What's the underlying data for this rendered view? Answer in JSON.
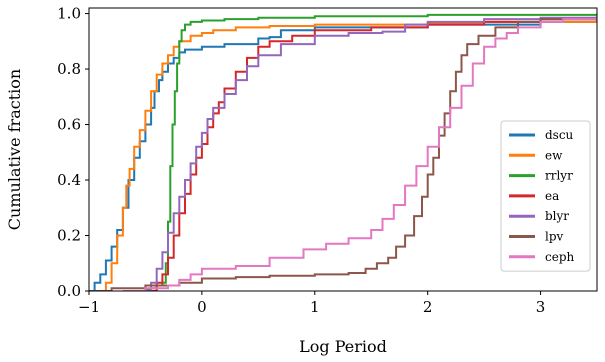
{
  "chart_data": {
    "type": "line",
    "xlabel": "Log Period",
    "ylabel": "Cumulative fraction",
    "xlim": [
      -1.0,
      3.5
    ],
    "ylim": [
      0.0,
      1.02
    ],
    "xticks": [
      -1,
      0,
      1,
      2,
      3
    ],
    "xtick_labels": [
      "−1",
      "0",
      "1",
      "2",
      "3"
    ],
    "yticks": [
      0.0,
      0.2,
      0.4,
      0.6,
      0.8,
      1.0
    ],
    "ytick_labels": [
      "0.0",
      "0.2",
      "0.4",
      "0.6",
      "0.8",
      "1.0"
    ],
    "grid": false,
    "legend_position": "lower-right",
    "series": [
      {
        "name": "dscu",
        "color": "#1f77b4",
        "points": [
          [
            -1.0,
            0.0
          ],
          [
            -0.95,
            0.03
          ],
          [
            -0.9,
            0.06
          ],
          [
            -0.85,
            0.11
          ],
          [
            -0.8,
            0.16
          ],
          [
            -0.75,
            0.22
          ],
          [
            -0.7,
            0.3
          ],
          [
            -0.65,
            0.4
          ],
          [
            -0.6,
            0.48
          ],
          [
            -0.55,
            0.54
          ],
          [
            -0.5,
            0.6
          ],
          [
            -0.45,
            0.66
          ],
          [
            -0.42,
            0.72
          ],
          [
            -0.38,
            0.76
          ],
          [
            -0.35,
            0.79
          ],
          [
            -0.3,
            0.82
          ],
          [
            -0.25,
            0.84
          ],
          [
            -0.2,
            0.86
          ],
          [
            -0.15,
            0.87
          ],
          [
            -0.1,
            0.87
          ],
          [
            0.0,
            0.88
          ],
          [
            0.2,
            0.89
          ],
          [
            0.5,
            0.91
          ],
          [
            0.6,
            0.915
          ],
          [
            0.7,
            0.94
          ],
          [
            1.0,
            0.95
          ],
          [
            2.0,
            0.96
          ],
          [
            3.0,
            0.97
          ],
          [
            3.5,
            0.985
          ]
        ]
      },
      {
        "name": "ew",
        "color": "#ff7f0e",
        "points": [
          [
            -0.9,
            0.0
          ],
          [
            -0.85,
            0.03
          ],
          [
            -0.8,
            0.1
          ],
          [
            -0.75,
            0.2
          ],
          [
            -0.7,
            0.3
          ],
          [
            -0.67,
            0.38
          ],
          [
            -0.64,
            0.44
          ],
          [
            -0.6,
            0.52
          ],
          [
            -0.55,
            0.58
          ],
          [
            -0.5,
            0.65
          ],
          [
            -0.45,
            0.72
          ],
          [
            -0.4,
            0.78
          ],
          [
            -0.35,
            0.82
          ],
          [
            -0.3,
            0.85
          ],
          [
            -0.25,
            0.88
          ],
          [
            -0.2,
            0.9
          ],
          [
            -0.1,
            0.92
          ],
          [
            0.0,
            0.93
          ],
          [
            0.1,
            0.94
          ],
          [
            0.3,
            0.95
          ],
          [
            0.6,
            0.955
          ],
          [
            1.0,
            0.96
          ],
          [
            2.0,
            0.965
          ],
          [
            2.5,
            0.97
          ],
          [
            3.5,
            0.975
          ]
        ]
      },
      {
        "name": "rrlyr",
        "color": "#2ca02c",
        "points": [
          [
            -0.6,
            0.0
          ],
          [
            -0.5,
            0.005
          ],
          [
            -0.45,
            0.01
          ],
          [
            -0.4,
            0.02
          ],
          [
            -0.35,
            0.03
          ],
          [
            -0.32,
            0.1
          ],
          [
            -0.3,
            0.25
          ],
          [
            -0.28,
            0.45
          ],
          [
            -0.26,
            0.6
          ],
          [
            -0.24,
            0.72
          ],
          [
            -0.22,
            0.82
          ],
          [
            -0.2,
            0.9
          ],
          [
            -0.18,
            0.94
          ],
          [
            -0.15,
            0.96
          ],
          [
            -0.1,
            0.97
          ],
          [
            0.0,
            0.975
          ],
          [
            0.2,
            0.98
          ],
          [
            0.5,
            0.985
          ],
          [
            1.0,
            0.99
          ],
          [
            2.0,
            0.995
          ],
          [
            3.5,
            1.0
          ]
        ]
      },
      {
        "name": "ea",
        "color": "#d62728",
        "points": [
          [
            -0.5,
            0.0
          ],
          [
            -0.4,
            0.03
          ],
          [
            -0.35,
            0.06
          ],
          [
            -0.3,
            0.12
          ],
          [
            -0.25,
            0.2
          ],
          [
            -0.2,
            0.28
          ],
          [
            -0.15,
            0.35
          ],
          [
            -0.1,
            0.42
          ],
          [
            -0.05,
            0.48
          ],
          [
            0.0,
            0.53
          ],
          [
            0.05,
            0.59
          ],
          [
            0.1,
            0.64
          ],
          [
            0.15,
            0.68
          ],
          [
            0.2,
            0.73
          ],
          [
            0.3,
            0.79
          ],
          [
            0.4,
            0.84
          ],
          [
            0.5,
            0.88
          ],
          [
            0.6,
            0.9
          ],
          [
            0.8,
            0.92
          ],
          [
            1.0,
            0.94
          ],
          [
            1.5,
            0.95
          ],
          [
            2.0,
            0.96
          ],
          [
            2.5,
            0.97
          ],
          [
            3.0,
            0.98
          ],
          [
            3.5,
            0.99
          ]
        ]
      },
      {
        "name": "blyr",
        "color": "#9467bd",
        "points": [
          [
            -0.55,
            0.0
          ],
          [
            -0.45,
            0.03
          ],
          [
            -0.4,
            0.08
          ],
          [
            -0.35,
            0.14
          ],
          [
            -0.3,
            0.21
          ],
          [
            -0.25,
            0.28
          ],
          [
            -0.2,
            0.34
          ],
          [
            -0.15,
            0.4
          ],
          [
            -0.1,
            0.46
          ],
          [
            -0.05,
            0.52
          ],
          [
            0.0,
            0.57
          ],
          [
            0.05,
            0.62
          ],
          [
            0.1,
            0.66
          ],
          [
            0.2,
            0.71
          ],
          [
            0.3,
            0.76
          ],
          [
            0.4,
            0.81
          ],
          [
            0.5,
            0.85
          ],
          [
            0.7,
            0.89
          ],
          [
            1.0,
            0.92
          ],
          [
            1.3,
            0.93
          ],
          [
            1.6,
            0.935
          ],
          [
            1.8,
            0.96
          ],
          [
            2.0,
            0.97
          ],
          [
            2.5,
            0.98
          ],
          [
            3.0,
            0.985
          ],
          [
            3.5,
            0.99
          ]
        ]
      },
      {
        "name": "lpv",
        "color": "#8c564b",
        "points": [
          [
            -1.0,
            0.0
          ],
          [
            -0.8,
            0.01
          ],
          [
            -0.5,
            0.02
          ],
          [
            -0.2,
            0.03
          ],
          [
            0.0,
            0.045
          ],
          [
            0.3,
            0.05
          ],
          [
            0.6,
            0.055
          ],
          [
            1.0,
            0.06
          ],
          [
            1.3,
            0.065
          ],
          [
            1.45,
            0.08
          ],
          [
            1.55,
            0.1
          ],
          [
            1.65,
            0.12
          ],
          [
            1.72,
            0.16
          ],
          [
            1.8,
            0.2
          ],
          [
            1.88,
            0.27
          ],
          [
            1.95,
            0.34
          ],
          [
            2.0,
            0.42
          ],
          [
            2.05,
            0.48
          ],
          [
            2.1,
            0.56
          ],
          [
            2.15,
            0.64
          ],
          [
            2.2,
            0.72
          ],
          [
            2.25,
            0.79
          ],
          [
            2.3,
            0.85
          ],
          [
            2.35,
            0.89
          ],
          [
            2.45,
            0.92
          ],
          [
            2.6,
            0.95
          ],
          [
            2.8,
            0.97
          ],
          [
            3.0,
            0.98
          ],
          [
            3.5,
            0.99
          ]
        ]
      },
      {
        "name": "ceph",
        "color": "#e377c2",
        "points": [
          [
            -0.7,
            0.0
          ],
          [
            -0.5,
            0.01
          ],
          [
            -0.3,
            0.02
          ],
          [
            -0.2,
            0.04
          ],
          [
            -0.1,
            0.06
          ],
          [
            0.0,
            0.08
          ],
          [
            0.3,
            0.09
          ],
          [
            0.6,
            0.12
          ],
          [
            0.9,
            0.15
          ],
          [
            1.1,
            0.17
          ],
          [
            1.3,
            0.19
          ],
          [
            1.5,
            0.22
          ],
          [
            1.6,
            0.26
          ],
          [
            1.7,
            0.31
          ],
          [
            1.8,
            0.38
          ],
          [
            1.9,
            0.45
          ],
          [
            2.0,
            0.52
          ],
          [
            2.1,
            0.59
          ],
          [
            2.2,
            0.66
          ],
          [
            2.3,
            0.74
          ],
          [
            2.4,
            0.82
          ],
          [
            2.5,
            0.88
          ],
          [
            2.6,
            0.91
          ],
          [
            2.7,
            0.93
          ],
          [
            2.8,
            0.95
          ],
          [
            3.0,
            0.97
          ],
          [
            3.2,
            0.98
          ],
          [
            3.5,
            0.99
          ]
        ]
      }
    ]
  }
}
